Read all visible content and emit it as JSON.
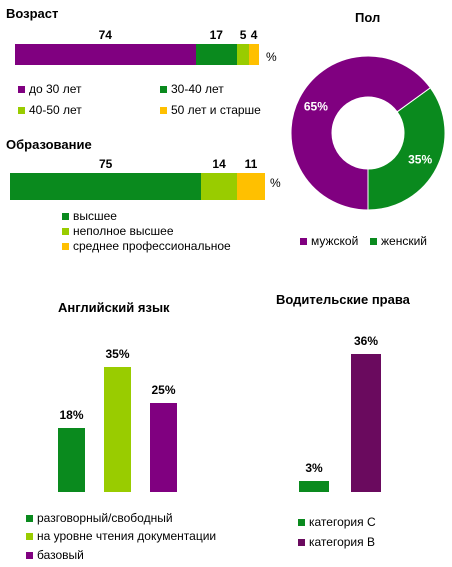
{
  "colors": {
    "green": "#0a8a1e",
    "lime": "#99cc00",
    "purple": "#800080",
    "yellow": "#ffc000",
    "dark_purple": "#6a0a5e"
  },
  "chart_data": [
    {
      "type": "bar",
      "orientation": "horizontal-stacked",
      "title": "Возраст",
      "unit": "%",
      "series": [
        {
          "name": "до 30 лет",
          "values": [
            74
          ],
          "color": "#800080"
        },
        {
          "name": "30-40  лет",
          "values": [
            17
          ],
          "color": "#0a8a1e"
        },
        {
          "name": "40-50  лет",
          "values": [
            5
          ],
          "color": "#99cc00"
        },
        {
          "name": "50 лет и старше",
          "values": [
            4
          ],
          "color": "#ffc000"
        }
      ],
      "legend": [
        "до 30 лет",
        "30-40  лет",
        "40-50  лет",
        "50 лет и старше"
      ]
    },
    {
      "type": "bar",
      "orientation": "horizontal-stacked",
      "title": "Образование",
      "unit": "%",
      "series": [
        {
          "name": "высшее",
          "values": [
            75
          ],
          "color": "#0a8a1e"
        },
        {
          "name": "неполное высшее",
          "values": [
            14
          ],
          "color": "#99cc00"
        },
        {
          "name": "среднее профессиональное",
          "values": [
            11
          ],
          "color": "#ffc000"
        }
      ],
      "legend": [
        "высшее",
        "неполное высшее",
        "среднее профессиональное"
      ]
    },
    {
      "type": "pie",
      "variant": "donut",
      "title": "Пол",
      "slices": [
        {
          "name": "мужской",
          "value": 65,
          "label": "65%",
          "color": "#800080"
        },
        {
          "name": "женский",
          "value": 35,
          "label": "35%",
          "color": "#0a8a1e"
        }
      ],
      "legend": [
        "мужской",
        "женский"
      ]
    },
    {
      "type": "bar",
      "title": "Английский язык",
      "categories": [
        "разговорный/свободный",
        "на уровне чтения документации",
        "базовый"
      ],
      "values": [
        18,
        35,
        25
      ],
      "labels": [
        "18%",
        "35%",
        "25%"
      ],
      "colors": [
        "#0a8a1e",
        "#99cc00",
        "#800080"
      ],
      "ylim": [
        0,
        35
      ]
    },
    {
      "type": "bar",
      "title": "Водительские права",
      "categories": [
        "категория С",
        "категория В"
      ],
      "values": [
        3,
        36
      ],
      "labels": [
        "3%",
        "36%"
      ],
      "colors": [
        "#0a8a1e",
        "#6a0a5e"
      ],
      "ylim": [
        0,
        36
      ]
    }
  ]
}
